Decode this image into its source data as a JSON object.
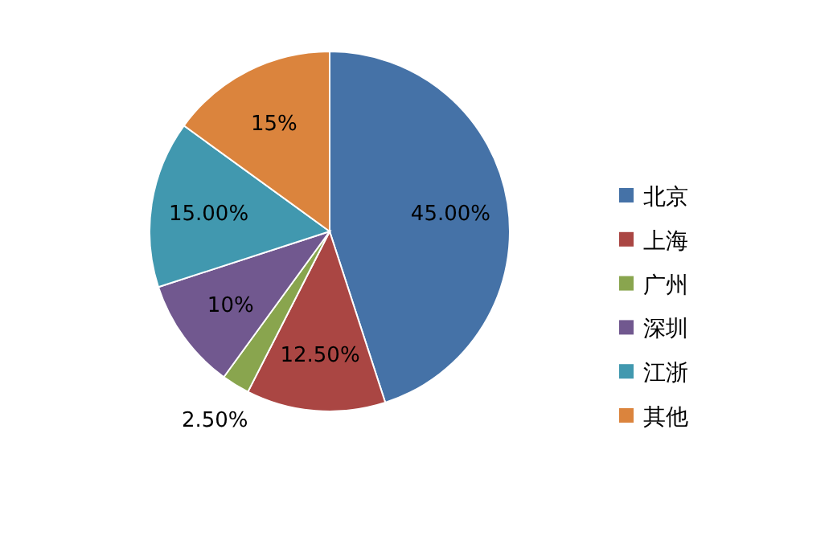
{
  "chart_data": {
    "type": "pie",
    "categories": [
      "北京",
      "上海",
      "广州",
      "深圳",
      "江浙",
      "其他"
    ],
    "values": [
      45,
      12.5,
      2.5,
      10,
      15,
      15
    ],
    "colors": [
      "#4572a7",
      "#aa4643",
      "#89a54e",
      "#71588f",
      "#4198af",
      "#db843d"
    ],
    "value_labels": [
      "45.00%",
      "12.50%",
      "2.50%",
      "10%",
      "15.00%",
      "15%"
    ],
    "legend": "right"
  }
}
